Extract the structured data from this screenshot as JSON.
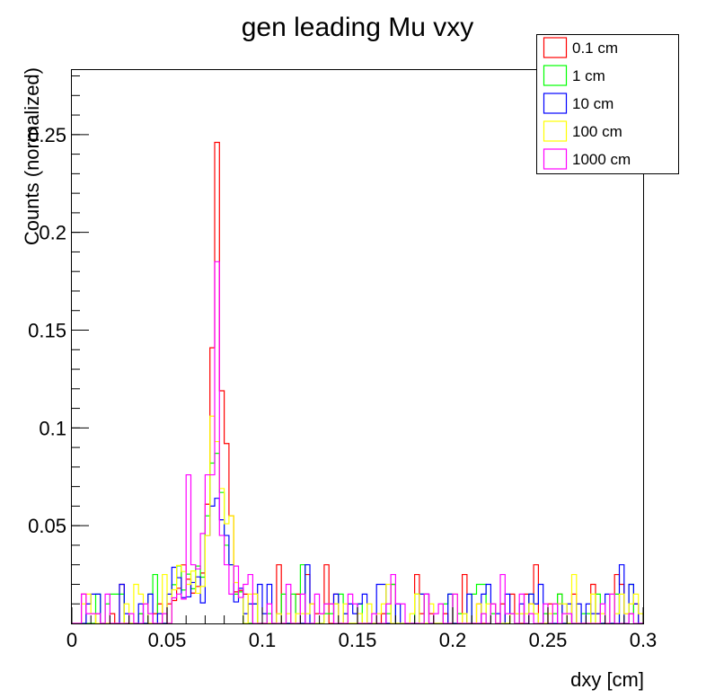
{
  "chart_data": {
    "type": "histogram",
    "title": "gen leading Mu vxy",
    "xlabel": "dxy [cm]",
    "ylabel": "Counts (normalized)",
    "xlim": [
      0,
      0.3
    ],
    "ylim": [
      0,
      0.283
    ],
    "x_ticks": [
      "0",
      "0.05",
      "0.1",
      "0.15",
      "0.2",
      "0.25",
      "0.3"
    ],
    "y_ticks": [
      "0.05",
      "0.1",
      "0.15",
      "0.2",
      "0.25"
    ],
    "bin_width": 0.0025,
    "n_bins": 120,
    "grid": false,
    "legend_position": "top-right",
    "series": [
      {
        "name": "0.1 cm",
        "color": "#ff0000",
        "peaks": {
          "0.0725": 0.141,
          "0.075": 0.246,
          "0.0775": 0.119,
          "0.08": 0.092,
          "0.07": 0.061,
          "0.0825": 0.055
        }
      },
      {
        "name": "1 cm",
        "color": "#00ff00",
        "peaks": {
          "0.0725": 0.082,
          "0.075": 0.087,
          "0.0775": 0.067,
          "0.08": 0.04,
          "0.07": 0.055,
          "0.0825": 0.03
        }
      },
      {
        "name": "10 cm",
        "color": "#0000ff",
        "peaks": {
          "0.0725": 0.06,
          "0.075": 0.064,
          "0.0775": 0.053,
          "0.08": 0.045,
          "0.07": 0.045,
          "0.0825": 0.03
        }
      },
      {
        "name": "100 cm",
        "color": "#ffff00",
        "peaks": {
          "0.0725": 0.106,
          "0.075": 0.093,
          "0.0775": 0.069,
          "0.08": 0.051,
          "0.07": 0.045,
          "0.0825": 0.055
        }
      },
      {
        "name": "1000 cm",
        "color": "#ff00ff",
        "peaks": {
          "0.0725": 0.076,
          "0.075": 0.185,
          "0.0775": 0.045,
          "0.08": 0.03,
          "0.07": 0.076,
          "0.0825": 0.015,
          "0.0675": 0.046,
          "0.06": 0.076
        }
      }
    ]
  }
}
